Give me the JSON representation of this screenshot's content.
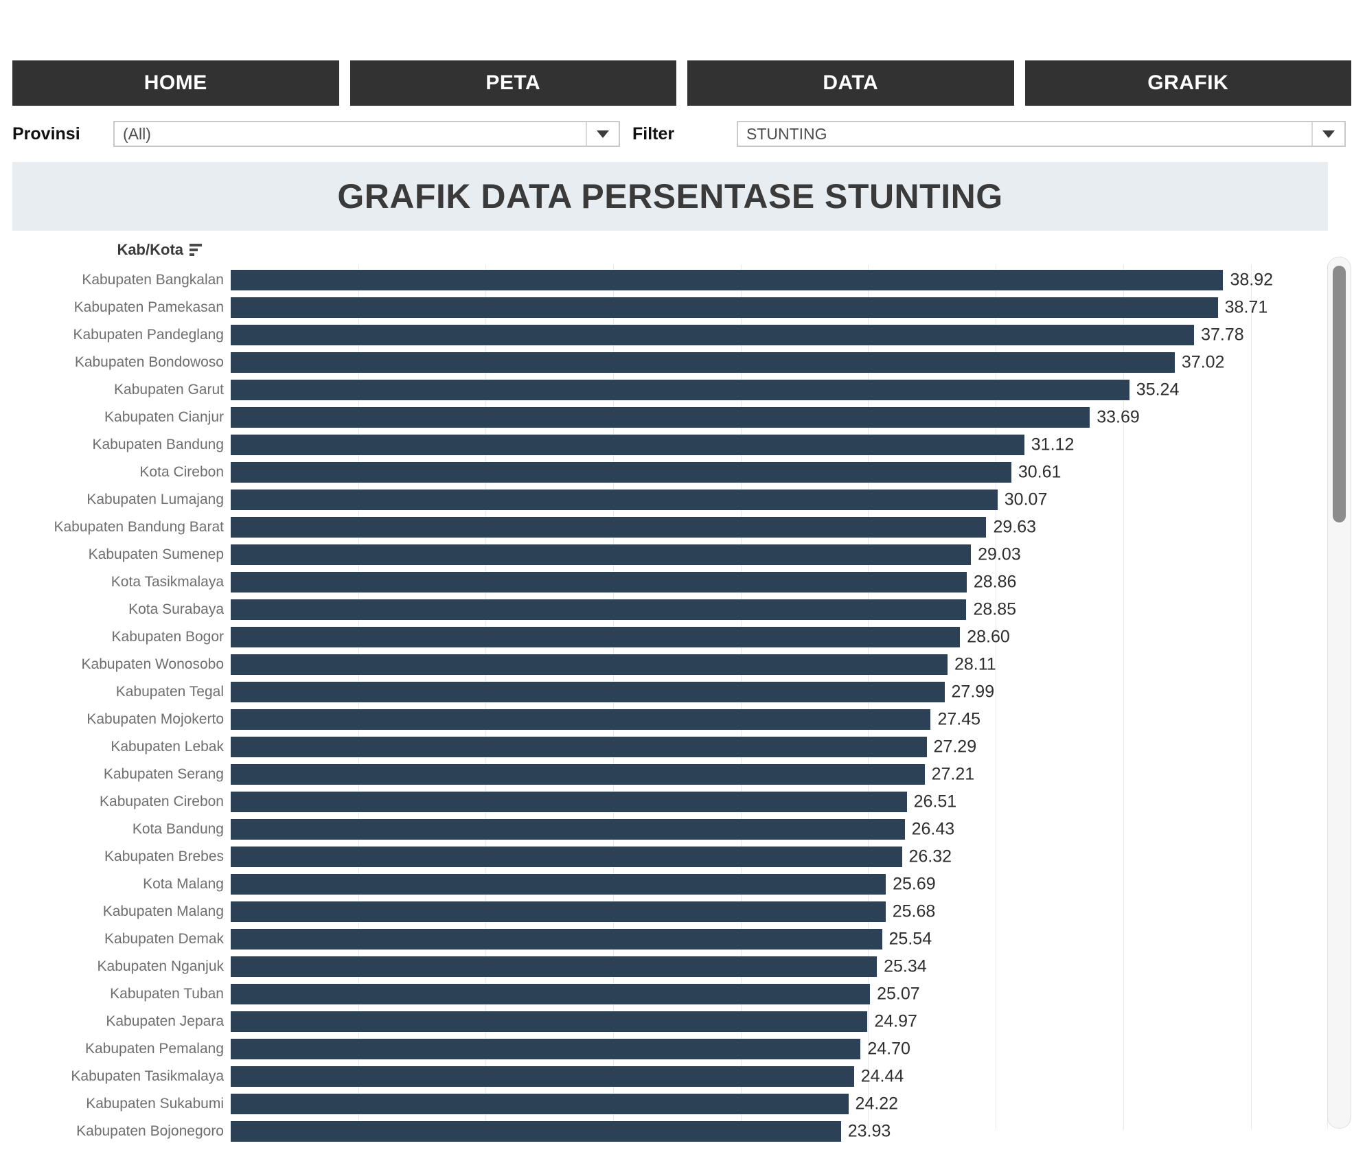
{
  "nav": {
    "items": [
      {
        "label": "HOME"
      },
      {
        "label": "PETA"
      },
      {
        "label": "DATA"
      },
      {
        "label": "GRAFIK"
      }
    ]
  },
  "filters": {
    "provinsi_label": "Provinsi",
    "provinsi_value": "(All)",
    "filter_label": "Filter",
    "filter_value": "STUNTING"
  },
  "title": "GRAFIK DATA PERSENTASE STUNTING",
  "colors": {
    "nav_background": "#323232",
    "banner_background": "#e8edf2",
    "bar": "#2d4156",
    "row_label": "#6e6e6e",
    "gridline": "#e9e9e9"
  },
  "icons": {
    "dropdown_arrow": "dropdown-arrow-icon",
    "sort": "sort-descending-icon"
  },
  "chart_data": {
    "type": "bar",
    "orientation": "horizontal",
    "column_header": "Kab/Kota",
    "sort_order": "descending",
    "axis_max": 43,
    "gridlines": [
      5,
      10,
      15,
      20,
      25,
      30,
      35,
      40
    ],
    "grid": true,
    "bar_color": "#2d4156",
    "value_decimals": 2,
    "categories": [
      "Kabupaten Bangkalan",
      "Kabupaten Pamekasan",
      "Kabupaten Pandeglang",
      "Kabupaten Bondowoso",
      "Kabupaten Garut",
      "Kabupaten Cianjur",
      "Kabupaten Bandung",
      "Kota Cirebon",
      "Kabupaten Lumajang",
      "Kabupaten Bandung Barat",
      "Kabupaten Sumenep",
      "Kota Tasikmalaya",
      "Kota Surabaya",
      "Kabupaten Bogor",
      "Kabupaten Wonosobo",
      "Kabupaten Tegal",
      "Kabupaten Mojokerto",
      "Kabupaten Lebak",
      "Kabupaten Serang",
      "Kabupaten Cirebon",
      "Kota Bandung",
      "Kabupaten Brebes",
      "Kota Malang",
      "Kabupaten Malang",
      "Kabupaten Demak",
      "Kabupaten Nganjuk",
      "Kabupaten Tuban",
      "Kabupaten Jepara",
      "Kabupaten Pemalang",
      "Kabupaten Tasikmalaya",
      "Kabupaten Sukabumi",
      "Kabupaten Bojonegoro"
    ],
    "values": [
      38.92,
      38.71,
      37.78,
      37.02,
      35.24,
      33.69,
      31.12,
      30.61,
      30.07,
      29.63,
      29.03,
      28.86,
      28.85,
      28.6,
      28.11,
      27.99,
      27.45,
      27.29,
      27.21,
      26.51,
      26.43,
      26.32,
      25.69,
      25.68,
      25.54,
      25.34,
      25.07,
      24.97,
      24.7,
      24.44,
      24.22,
      23.93
    ]
  }
}
